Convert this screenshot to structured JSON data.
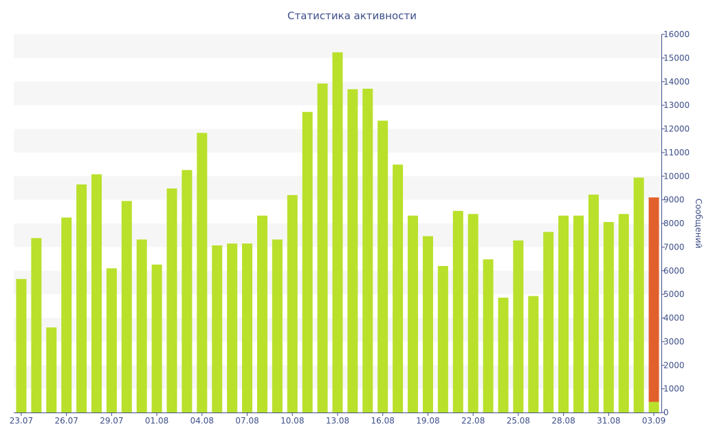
{
  "chart_data": {
    "type": "bar",
    "title": "Статистика активности",
    "xlabel": "",
    "ylabel": "Сообщений",
    "ylim": [
      0,
      16000
    ],
    "yticks": [
      0,
      1000,
      2000,
      3000,
      4000,
      5000,
      6000,
      7000,
      8000,
      9000,
      10000,
      11000,
      12000,
      13000,
      14000,
      15000,
      16000
    ],
    "y_axis_side": "right",
    "grid": "alternating horizontal bands",
    "legend": "none",
    "categories": [
      "23.07",
      "24.07",
      "25.07",
      "26.07",
      "27.07",
      "28.07",
      "29.07",
      "30.07",
      "31.07",
      "01.08",
      "02.08",
      "03.08",
      "04.08",
      "05.08",
      "06.08",
      "07.08",
      "08.08",
      "09.08",
      "10.08",
      "11.08",
      "12.08",
      "13.08",
      "14.08",
      "15.08",
      "16.08",
      "17.08",
      "18.08",
      "19.08",
      "20.08",
      "21.08",
      "22.08",
      "23.08",
      "24.08",
      "25.08",
      "26.08",
      "27.08",
      "28.08",
      "29.08",
      "30.08",
      "31.08",
      "01.09",
      "02.09",
      "03.09"
    ],
    "tick_labels": [
      "23.07",
      "26.07",
      "29.07",
      "01.08",
      "04.08",
      "07.08",
      "10.08",
      "13.08",
      "16.08",
      "19.08",
      "22.08",
      "25.08",
      "28.08",
      "31.08",
      "03.09"
    ],
    "series": [
      {
        "color": "#b9e02b",
        "values": [
          5650,
          7380,
          3600,
          8250,
          9650,
          10080,
          6100,
          8950,
          7320,
          6260,
          9480,
          10260,
          11830,
          7070,
          7150,
          7150,
          8330,
          7320,
          9200,
          12720,
          13920,
          15240,
          13680,
          13700,
          12350,
          10490,
          8330,
          7460,
          6200,
          8530,
          8400,
          6480,
          4860,
          7280,
          4930,
          7640,
          8330,
          8330,
          9220,
          8060,
          8400,
          9940,
          450
        ]
      },
      {
        "color": "#e2602c",
        "values": [
          0,
          0,
          0,
          0,
          0,
          0,
          0,
          0,
          0,
          0,
          0,
          0,
          0,
          0,
          0,
          0,
          0,
          0,
          0,
          0,
          0,
          0,
          0,
          0,
          0,
          0,
          0,
          0,
          0,
          0,
          0,
          0,
          0,
          0,
          0,
          0,
          0,
          0,
          0,
          0,
          0,
          0,
          8650
        ]
      }
    ]
  },
  "style": {
    "text_color": "#3d4e88",
    "band_color": "#f6f6f6",
    "axis_color": "#3d4e88"
  }
}
